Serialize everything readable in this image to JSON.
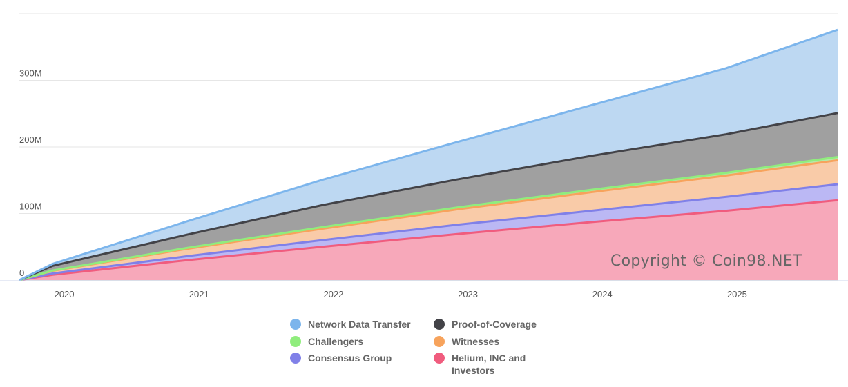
{
  "chart_data": {
    "type": "area",
    "stacked": true,
    "x": [
      "2019-09",
      "2019-12",
      "2020-12",
      "2021-12",
      "2022-12",
      "2023-12",
      "2024-12",
      "2025-10"
    ],
    "x_ticks": [
      "2020",
      "2021",
      "2022",
      "2023",
      "2024",
      "2025"
    ],
    "y_ticks": [
      "0",
      "100M",
      "200M",
      "300M"
    ],
    "ylim": [
      0,
      400
    ],
    "y_unit": "M",
    "grid": true,
    "legend_position": "bottom",
    "watermark": "Copyright © Coin98.NET",
    "series": [
      {
        "name": "Helium, INC and Investors",
        "color": "#f05c7e",
        "fill": "#f7a8ba",
        "values": [
          0,
          8,
          30,
          50,
          69,
          87,
          104,
          120
        ]
      },
      {
        "name": "Consensus Group",
        "color": "#8080e8",
        "fill": "#bbb8f4",
        "values": [
          0,
          2,
          6,
          10,
          14,
          17,
          21,
          24
        ]
      },
      {
        "name": "Witnesses",
        "color": "#f7a35c",
        "fill": "#f9cba8",
        "values": [
          0,
          4,
          11,
          17,
          23,
          28,
          32,
          36
        ]
      },
      {
        "name": "Challengers",
        "color": "#90ed7d",
        "fill": "#b5e8a8",
        "values": [
          0,
          0.5,
          1.5,
          2.5,
          3,
          3.5,
          4,
          5
        ]
      },
      {
        "name": "Proof-of-Coverage",
        "color": "#434348",
        "fill": "#a0a0a0",
        "values": [
          0,
          7,
          20,
          33,
          42,
          51,
          58,
          66
        ]
      },
      {
        "name": "Network Data Transfer",
        "color": "#7cb5ec",
        "fill": "#bdd8f2",
        "values": [
          0,
          3,
          20,
          38,
          56,
          76,
          99,
          125
        ]
      }
    ]
  }
}
